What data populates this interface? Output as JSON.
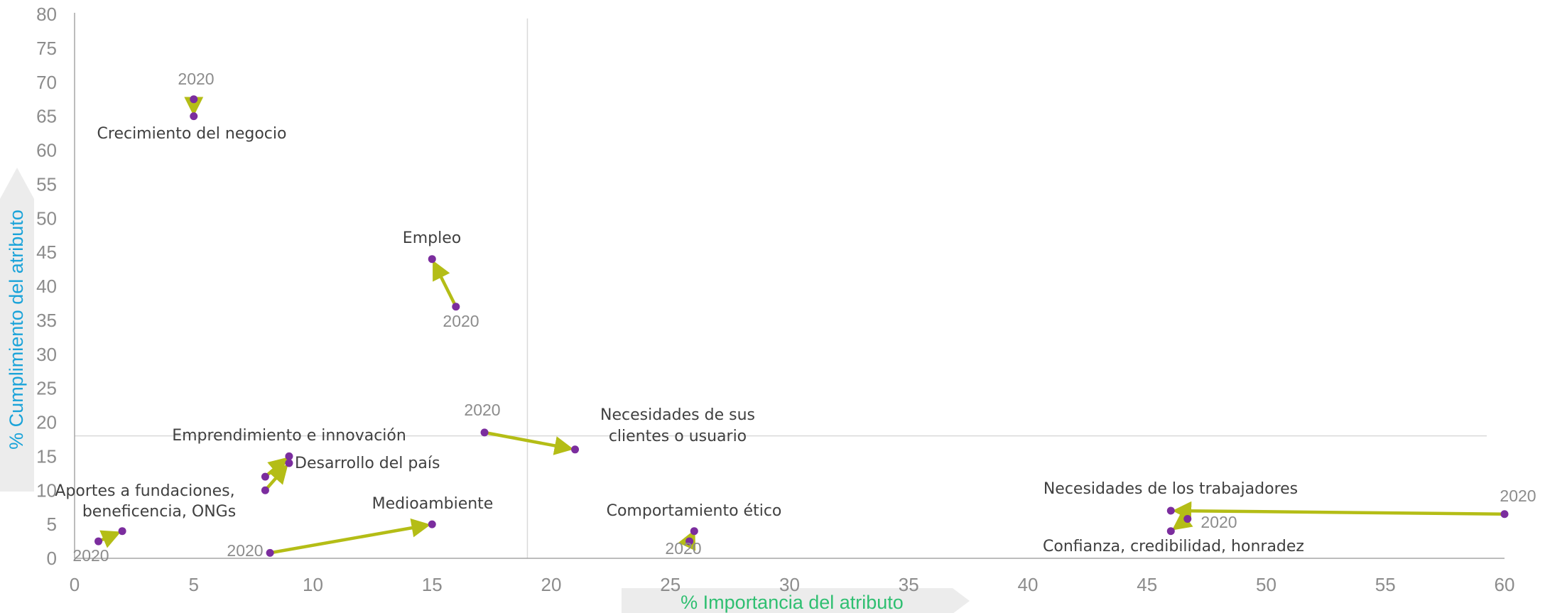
{
  "colors": {
    "point": "#7b2d9e",
    "arrow": "#b4bd16",
    "axis_line": "#a6a6a6",
    "ref_line": "#d9d9d9",
    "tick_text": "#8c8c8c",
    "label_text": "#404040",
    "year_text": "#808080",
    "ylabel": "#1aa3d9",
    "xlabel": "#2fbf71",
    "axis_title_bg": "#ececec"
  },
  "chart_data": {
    "type": "scatter",
    "title": "",
    "xlabel": "% Importancia del atributo",
    "ylabel": "% Cumplimiento del atributo",
    "xlim": [
      0,
      60
    ],
    "ylim": [
      0,
      80
    ],
    "xticks": [
      0,
      5,
      10,
      15,
      20,
      25,
      30,
      35,
      40,
      45,
      50,
      55,
      60
    ],
    "yticks": [
      0,
      5,
      10,
      15,
      20,
      25,
      30,
      35,
      40,
      45,
      50,
      55,
      60,
      65,
      70,
      75,
      80
    ],
    "reference_lines": {
      "x": 19,
      "y": 18
    },
    "grid": false,
    "legend": "none",
    "series": [
      {
        "name": "Crecimiento del negocio",
        "from": [
          5,
          67.5
        ],
        "to": [
          5,
          65
        ],
        "year_label": "2020"
      },
      {
        "name": "Empleo",
        "from": [
          16,
          37
        ],
        "to": [
          15,
          44
        ],
        "year_label": "2020"
      },
      {
        "name": "Necesidades de sus clientes o usuario",
        "from": [
          17.2,
          18.5
        ],
        "to": [
          21,
          16
        ],
        "year_label": "2020"
      },
      {
        "name": "Emprendimiento e innovación",
        "from": [
          8,
          12
        ],
        "to": [
          9,
          15
        ],
        "year_label": ""
      },
      {
        "name": "Desarrollo del país",
        "from": [
          8,
          10
        ],
        "to": [
          9,
          14
        ],
        "year_label": ""
      },
      {
        "name": "Aportes a fundaciones, beneficencia, ONGs",
        "from": [
          1,
          2.5
        ],
        "to": [
          2,
          4
        ],
        "year_label": "2020"
      },
      {
        "name": "Medioambiente",
        "from": [
          8.2,
          0.8
        ],
        "to": [
          15,
          5
        ],
        "year_label": "2020"
      },
      {
        "name": "Comportamiento ético",
        "from": [
          25.8,
          2.5
        ],
        "to": [
          26,
          4
        ],
        "year_label": "2020"
      },
      {
        "name": "Necesidades de los trabajadores",
        "from": [
          60,
          6.5
        ],
        "to": [
          46,
          7
        ],
        "year_label": "2020"
      },
      {
        "name": "Confianza, credibilidad, honradez",
        "from": [
          46.7,
          5.8
        ],
        "to": [
          46,
          4
        ],
        "year_label": "2020"
      }
    ],
    "labels": {
      "crecimiento": "Crecimiento del negocio",
      "empleo": "Empleo",
      "necesidades_clientes_l1": "Necesidades de sus",
      "necesidades_clientes_l2": "clientes o usuario",
      "emprendimiento": "Emprendimiento e innovación",
      "desarrollo": "Desarrollo del país",
      "aportes_l1": "Aportes a fundaciones,",
      "aportes_l2": "beneficencia, ONGs",
      "medioambiente": "Medioambiente",
      "comportamiento": "Comportamiento ético",
      "trabajadores": "Necesidades de los trabajadores",
      "confianza": "Confianza, credibilidad, honradez",
      "year": "2020"
    }
  }
}
